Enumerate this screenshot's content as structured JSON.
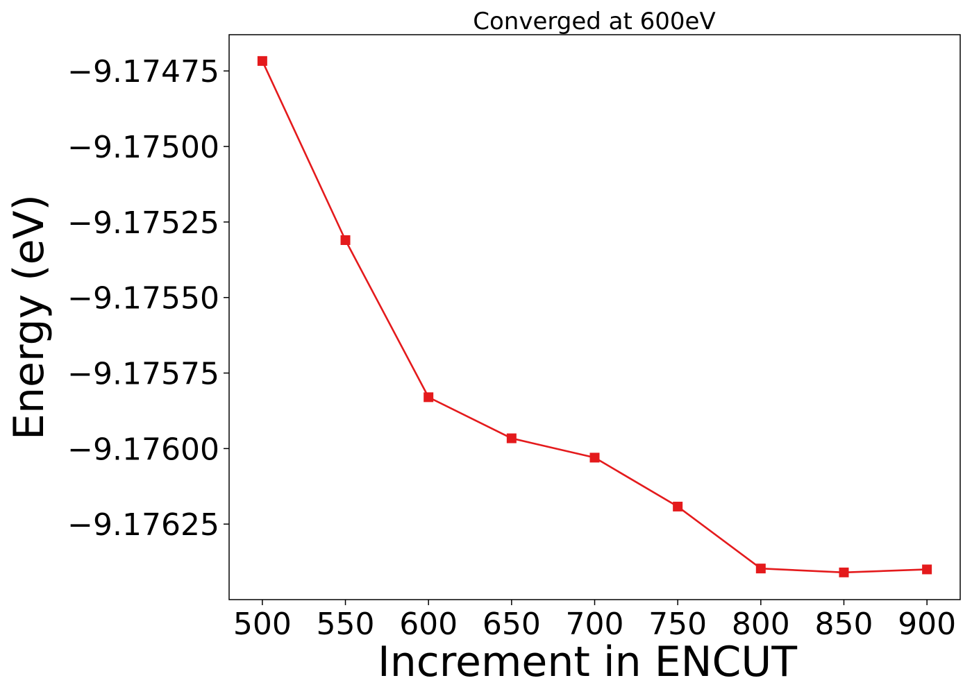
{
  "chart_data": {
    "type": "line",
    "title": "Converged at 600eV",
    "xlabel": "Increment in ENCUT",
    "ylabel": "Energy (eV)",
    "x": [
      500,
      550,
      600,
      650,
      700,
      750,
      800,
      850,
      900
    ],
    "series": [
      {
        "values": [
          -9.174717,
          -9.17531,
          -9.17583,
          -9.175966,
          -9.17603,
          -9.176192,
          -9.176397,
          -9.17641,
          -9.1764
        ],
        "color": "#e41a1c",
        "marker": "square"
      }
    ],
    "xticks": [
      500,
      550,
      600,
      650,
      700,
      750,
      800,
      850,
      900
    ],
    "xtick_labels": [
      "500",
      "550",
      "600",
      "650",
      "700",
      "750",
      "800",
      "850",
      "900"
    ],
    "yticks": [
      -9.17475,
      -9.175,
      -9.17525,
      -9.1755,
      -9.17575,
      -9.176,
      -9.17625
    ],
    "ytick_labels": [
      "−9.17475",
      "−9.17500",
      "−9.17525",
      "−9.17550",
      "−9.17575",
      "−9.17600",
      "−9.17625"
    ],
    "xlim": [
      480,
      920
    ],
    "ylim": [
      -9.1765,
      -9.17463
    ],
    "grid": false,
    "legend": false
  }
}
